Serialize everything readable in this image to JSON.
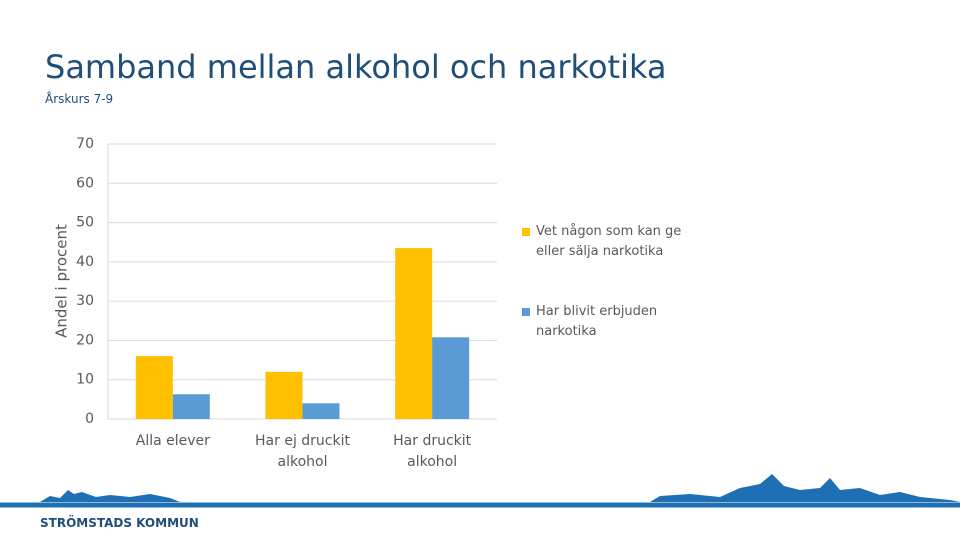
{
  "slide": {
    "title": "Samband mellan alkohol och narkotika",
    "subtitle": "Årskurs 7-9",
    "footer": "STRÖMSTADS KOMMUN"
  },
  "chart_data": {
    "type": "bar",
    "y_label": "Andel i procent",
    "categories": [
      "Alla elever",
      "Har ej druckit alkohol",
      "Har druckit alkohol"
    ],
    "series": [
      {
        "name": "Vet någon som kan ge eller sälja narkotika",
        "color": "#ffc000",
        "values": [
          16,
          12,
          43.5
        ]
      },
      {
        "name": "Har blivit erbjuden narkotika",
        "color": "#5b9bd5",
        "values": [
          6.3,
          4,
          20.8
        ]
      }
    ],
    "ylim": [
      0,
      70
    ],
    "yticks": [
      0,
      10,
      20,
      30,
      40,
      50,
      60,
      70
    ],
    "grid": true,
    "legend": "right"
  }
}
